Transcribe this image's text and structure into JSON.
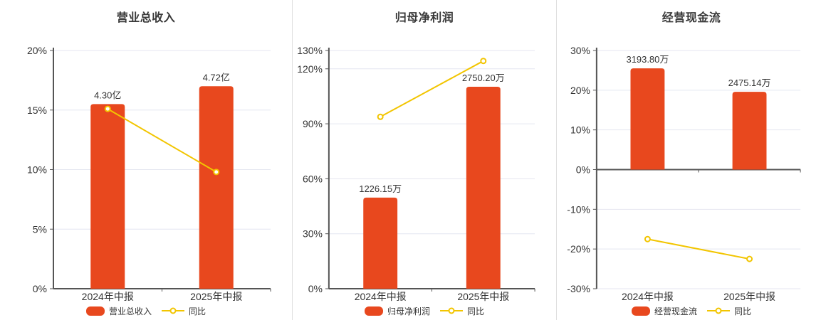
{
  "colors": {
    "bar": "#E8481E",
    "line": "#F2C500",
    "grid": "#E4E6F0",
    "axis": "#555555",
    "text": "#333333",
    "divider": "#DFDFDF",
    "background": "#FFFFFF",
    "marker_fill": "#FFFFFF"
  },
  "chart_data": [
    {
      "type": "bar+line",
      "title": "营业总收入",
      "categories": [
        "2024年中报",
        "2025年中报"
      ],
      "bar_series": {
        "name": "营业总收入",
        "labels": [
          "4.30亿",
          "4.72亿"
        ],
        "pct_values": [
          15.5,
          17.0
        ]
      },
      "line_series": {
        "name": "同比",
        "pct_values": [
          15.1,
          9.8
        ]
      },
      "y_axis": {
        "min": 0,
        "max": 20,
        "ticks": [
          {
            "value": 20,
            "label": "20%"
          },
          {
            "value": 15,
            "label": "15%"
          },
          {
            "value": 10,
            "label": "10%"
          },
          {
            "value": 5,
            "label": "5%"
          },
          {
            "value": 0,
            "label": "0%"
          }
        ]
      },
      "grid": true,
      "legend_position": "bottom"
    },
    {
      "type": "bar+line",
      "title": "归母净利润",
      "categories": [
        "2024年中报",
        "2025年中报"
      ],
      "bar_series": {
        "name": "归母净利润",
        "labels": [
          "1226.15万",
          "2750.20万"
        ],
        "pct_values": [
          49.7,
          110.2
        ]
      },
      "line_series": {
        "name": "同比",
        "pct_values": [
          93.8,
          124.3
        ]
      },
      "y_axis": {
        "min": 0,
        "max": 130,
        "ticks": [
          {
            "value": 130,
            "label": "130%"
          },
          {
            "value": 120,
            "label": "120%"
          },
          {
            "value": 90,
            "label": "90%"
          },
          {
            "value": 60,
            "label": "60%"
          },
          {
            "value": 30,
            "label": "30%"
          },
          {
            "value": 0,
            "label": "0%"
          }
        ]
      },
      "grid": true,
      "legend_position": "bottom"
    },
    {
      "type": "bar+line",
      "title": "经营现金流",
      "categories": [
        "2024年中报",
        "2025年中报"
      ],
      "bar_series": {
        "name": "经营现金流",
        "labels": [
          "3193.80万",
          "2475.14万"
        ],
        "pct_values": [
          25.5,
          19.6
        ]
      },
      "line_series": {
        "name": "同比",
        "pct_values": [
          -17.5,
          -22.5
        ]
      },
      "y_axis": {
        "min": -30,
        "max": 30,
        "ticks": [
          {
            "value": 30,
            "label": "30%"
          },
          {
            "value": 20,
            "label": "20%"
          },
          {
            "value": 10,
            "label": "10%"
          },
          {
            "value": 0,
            "label": "0%"
          },
          {
            "value": -10,
            "label": "-10%"
          },
          {
            "value": -20,
            "label": "-20%"
          },
          {
            "value": -30,
            "label": "-30%"
          }
        ]
      },
      "grid": true,
      "legend_position": "bottom"
    }
  ]
}
